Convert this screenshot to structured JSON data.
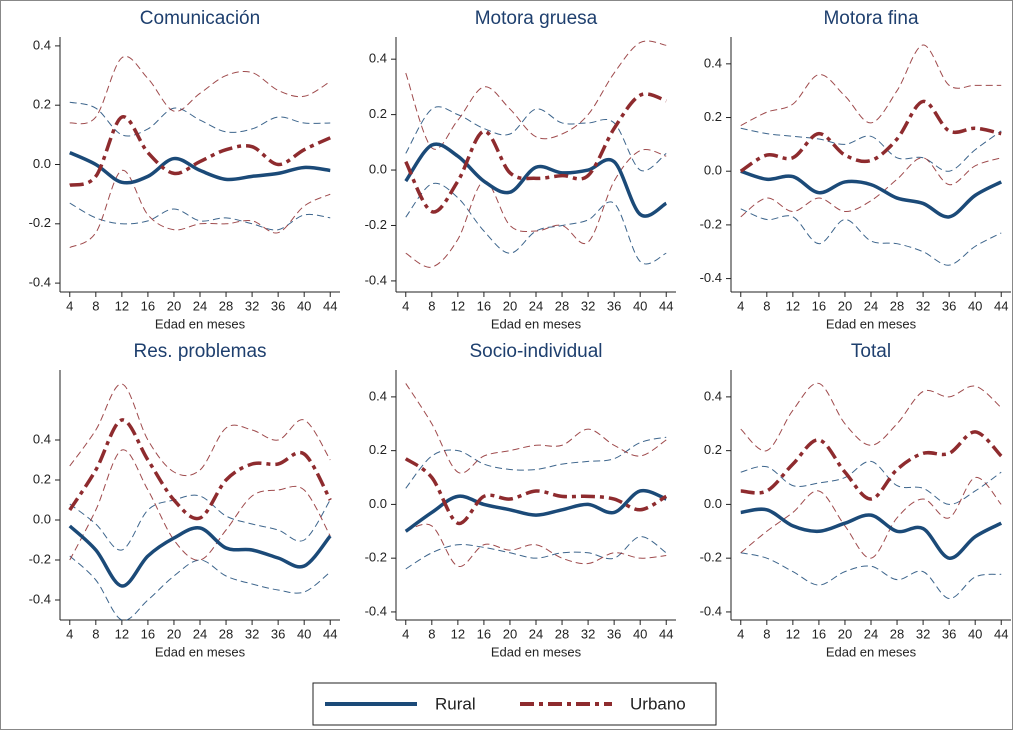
{
  "chart_data": [
    {
      "type": "line",
      "title": "Comunicación",
      "x_label": "Edad en meses",
      "x": [
        4,
        8,
        12,
        16,
        20,
        24,
        28,
        32,
        36,
        40,
        44
      ],
      "xlim": [
        2.5,
        45.5
      ],
      "xticks": [
        4,
        8,
        12,
        16,
        20,
        24,
        28,
        32,
        36,
        40,
        44
      ],
      "ylim": [
        -0.43,
        0.43
      ],
      "yticks": [
        -0.4,
        -0.2,
        {
          "value": 0,
          "label": "0.0"
        },
        0.2,
        0.4
      ],
      "series": [
        {
          "name": "Rural",
          "color": "#1b4a78",
          "line_style": "solid",
          "values": [
            0.04,
            0.0,
            -0.06,
            -0.04,
            0.02,
            -0.02,
            -0.05,
            -0.04,
            -0.03,
            -0.01,
            -0.02
          ],
          "upper": [
            0.21,
            0.19,
            0.1,
            0.12,
            0.19,
            0.15,
            0.11,
            0.12,
            0.16,
            0.14,
            0.14
          ],
          "lower": [
            -0.13,
            -0.18,
            -0.2,
            -0.19,
            -0.15,
            -0.19,
            -0.18,
            -0.2,
            -0.22,
            -0.17,
            -0.18
          ]
        },
        {
          "name": "Urbano",
          "color": "#8e2b2e",
          "line_style": "dash-dot",
          "values": [
            -0.07,
            -0.04,
            0.16,
            0.04,
            -0.03,
            0.01,
            0.05,
            0.06,
            0.0,
            0.05,
            0.09
          ],
          "upper": [
            0.14,
            0.16,
            0.36,
            0.29,
            0.18,
            0.24,
            0.3,
            0.31,
            0.25,
            0.23,
            0.28
          ],
          "lower": [
            -0.28,
            -0.23,
            -0.02,
            -0.17,
            -0.22,
            -0.2,
            -0.2,
            -0.19,
            -0.23,
            -0.14,
            -0.1
          ]
        }
      ]
    },
    {
      "type": "line",
      "title": "Motora gruesa",
      "x_label": "Edad en meses",
      "x": [
        4,
        8,
        12,
        16,
        20,
        24,
        28,
        32,
        36,
        40,
        44
      ],
      "xlim": [
        2.5,
        45.5
      ],
      "xticks": [
        4,
        8,
        12,
        16,
        20,
        24,
        28,
        32,
        36,
        40,
        44
      ],
      "ylim": [
        -0.44,
        0.48
      ],
      "yticks": [
        -0.4,
        -0.2,
        {
          "value": 0,
          "label": "0.0"
        },
        0.2,
        0.4
      ],
      "series": [
        {
          "name": "Rural",
          "color": "#1b4a78",
          "line_style": "solid",
          "values": [
            -0.04,
            0.09,
            0.05,
            -0.04,
            -0.08,
            0.01,
            -0.01,
            0.0,
            0.03,
            -0.16,
            -0.12
          ],
          "upper": [
            0.06,
            0.22,
            0.2,
            0.15,
            0.13,
            0.22,
            0.17,
            0.17,
            0.17,
            0.0,
            0.06
          ],
          "lower": [
            -0.17,
            -0.05,
            -0.1,
            -0.22,
            -0.3,
            -0.22,
            -0.2,
            -0.18,
            -0.12,
            -0.33,
            -0.3
          ]
        },
        {
          "name": "Urbano",
          "color": "#8e2b2e",
          "line_style": "dash-dot",
          "values": [
            0.03,
            -0.15,
            -0.04,
            0.14,
            -0.01,
            -0.03,
            -0.02,
            -0.02,
            0.15,
            0.27,
            0.25
          ],
          "upper": [
            0.35,
            0.08,
            0.18,
            0.3,
            0.22,
            0.12,
            0.13,
            0.2,
            0.35,
            0.46,
            0.45
          ],
          "lower": [
            -0.3,
            -0.35,
            -0.25,
            -0.04,
            -0.2,
            -0.22,
            -0.2,
            -0.26,
            -0.04,
            0.07,
            0.05
          ]
        }
      ]
    },
    {
      "type": "line",
      "title": "Motora fina",
      "x_label": "Edad en meses",
      "x": [
        4,
        8,
        12,
        16,
        20,
        24,
        28,
        32,
        36,
        40,
        44
      ],
      "xlim": [
        2.5,
        45.5
      ],
      "xticks": [
        4,
        8,
        12,
        16,
        20,
        24,
        28,
        32,
        36,
        40,
        44
      ],
      "ylim": [
        -0.45,
        0.5
      ],
      "yticks": [
        -0.4,
        -0.2,
        {
          "value": 0,
          "label": "0.0"
        },
        0.2,
        0.4
      ],
      "series": [
        {
          "name": "Rural",
          "color": "#1b4a78",
          "line_style": "solid",
          "values": [
            0.0,
            -0.03,
            -0.02,
            -0.08,
            -0.04,
            -0.05,
            -0.1,
            -0.12,
            -0.17,
            -0.09,
            -0.04
          ],
          "upper": [
            0.16,
            0.14,
            0.13,
            0.12,
            0.1,
            0.13,
            0.05,
            0.05,
            0.0,
            0.08,
            0.15
          ],
          "lower": [
            -0.14,
            -0.18,
            -0.17,
            -0.27,
            -0.18,
            -0.26,
            -0.27,
            -0.3,
            -0.35,
            -0.28,
            -0.23
          ]
        },
        {
          "name": "Urbano",
          "color": "#8e2b2e",
          "line_style": "dash-dot",
          "values": [
            0.0,
            0.06,
            0.05,
            0.14,
            0.06,
            0.04,
            0.12,
            0.26,
            0.15,
            0.16,
            0.14
          ],
          "upper": [
            0.17,
            0.22,
            0.25,
            0.36,
            0.28,
            0.18,
            0.3,
            0.47,
            0.32,
            0.32,
            0.32
          ],
          "lower": [
            -0.17,
            -0.1,
            -0.15,
            -0.1,
            -0.15,
            -0.11,
            -0.03,
            0.05,
            -0.05,
            0.02,
            0.05
          ]
        }
      ]
    },
    {
      "type": "line",
      "title": "Res. problemas",
      "x_label": "Edad en meses",
      "x": [
        4,
        8,
        12,
        16,
        20,
        24,
        28,
        32,
        36,
        40,
        44
      ],
      "xlim": [
        2.5,
        45.5
      ],
      "xticks": [
        4,
        8,
        12,
        16,
        20,
        24,
        28,
        32,
        36,
        40,
        44
      ],
      "ylim": [
        -0.5,
        0.75
      ],
      "yticks": [
        -0.4,
        -0.2,
        {
          "value": 0,
          "label": "0.0"
        },
        0.2,
        0.4
      ],
      "series": [
        {
          "name": "Rural",
          "color": "#1b4a78",
          "line_style": "solid",
          "values": [
            -0.03,
            -0.15,
            -0.33,
            -0.18,
            -0.09,
            -0.04,
            -0.14,
            -0.15,
            -0.19,
            -0.23,
            -0.08
          ],
          "upper": [
            0.08,
            -0.02,
            -0.15,
            0.05,
            0.1,
            0.12,
            0.02,
            -0.02,
            -0.05,
            -0.1,
            0.1
          ],
          "lower": [
            -0.18,
            -0.3,
            -0.5,
            -0.4,
            -0.28,
            -0.2,
            -0.28,
            -0.32,
            -0.35,
            -0.36,
            -0.26
          ]
        },
        {
          "name": "Urbano",
          "color": "#8e2b2e",
          "line_style": "dash-dot",
          "values": [
            0.05,
            0.25,
            0.5,
            0.3,
            0.1,
            0.01,
            0.2,
            0.28,
            0.28,
            0.33,
            0.1
          ],
          "upper": [
            0.27,
            0.45,
            0.68,
            0.4,
            0.24,
            0.25,
            0.46,
            0.45,
            0.4,
            0.5,
            0.3
          ],
          "lower": [
            -0.2,
            0.05,
            0.35,
            0.15,
            -0.1,
            -0.2,
            -0.05,
            0.12,
            0.15,
            0.15,
            -0.08
          ]
        }
      ]
    },
    {
      "type": "line",
      "title": "Socio-individual",
      "x_label": "Edad en meses",
      "x": [
        4,
        8,
        12,
        16,
        20,
        24,
        28,
        32,
        36,
        40,
        44
      ],
      "xlim": [
        2.5,
        45.5
      ],
      "xticks": [
        4,
        8,
        12,
        16,
        20,
        24,
        28,
        32,
        36,
        40,
        44
      ],
      "ylim": [
        -0.43,
        0.5
      ],
      "yticks": [
        -0.4,
        -0.2,
        {
          "value": 0,
          "label": "0.0"
        },
        0.2,
        0.4
      ],
      "series": [
        {
          "name": "Rural",
          "color": "#1b4a78",
          "line_style": "solid",
          "values": [
            -0.1,
            -0.03,
            0.03,
            0.0,
            -0.02,
            -0.04,
            -0.02,
            0.0,
            -0.03,
            0.05,
            0.02
          ],
          "upper": [
            0.06,
            0.18,
            0.2,
            0.15,
            0.13,
            0.13,
            0.15,
            0.16,
            0.17,
            0.23,
            0.25
          ],
          "lower": [
            -0.24,
            -0.18,
            -0.15,
            -0.16,
            -0.18,
            -0.2,
            -0.18,
            -0.18,
            -0.2,
            -0.12,
            -0.18
          ]
        },
        {
          "name": "Urbano",
          "color": "#8e2b2e",
          "line_style": "dash-dot",
          "values": [
            0.17,
            0.1,
            -0.07,
            0.03,
            0.02,
            0.05,
            0.03,
            0.03,
            0.02,
            -0.02,
            0.03
          ],
          "upper": [
            0.45,
            0.3,
            0.12,
            0.18,
            0.2,
            0.22,
            0.22,
            0.28,
            0.22,
            0.18,
            0.24
          ],
          "lower": [
            -0.1,
            -0.08,
            -0.23,
            -0.15,
            -0.17,
            -0.15,
            -0.2,
            -0.22,
            -0.18,
            -0.2,
            -0.19
          ]
        }
      ]
    },
    {
      "type": "line",
      "title": "Total",
      "x_label": "Edad en meses",
      "x": [
        4,
        8,
        12,
        16,
        20,
        24,
        28,
        32,
        36,
        40,
        44
      ],
      "xlim": [
        2.5,
        45.5
      ],
      "xticks": [
        4,
        8,
        12,
        16,
        20,
        24,
        28,
        32,
        36,
        40,
        44
      ],
      "ylim": [
        -0.43,
        0.5
      ],
      "yticks": [
        -0.4,
        -0.2,
        {
          "value": 0,
          "label": "0.0"
        },
        0.2,
        0.4
      ],
      "series": [
        {
          "name": "Rural",
          "color": "#1b4a78",
          "line_style": "solid",
          "values": [
            -0.03,
            -0.02,
            -0.08,
            -0.1,
            -0.07,
            -0.04,
            -0.1,
            -0.09,
            -0.2,
            -0.12,
            -0.07
          ],
          "upper": [
            0.12,
            0.14,
            0.07,
            0.08,
            0.1,
            0.16,
            0.07,
            0.06,
            0.0,
            0.05,
            0.12
          ],
          "lower": [
            -0.18,
            -0.2,
            -0.25,
            -0.3,
            -0.25,
            -0.23,
            -0.28,
            -0.25,
            -0.35,
            -0.27,
            -0.26
          ]
        },
        {
          "name": "Urbano",
          "color": "#8e2b2e",
          "line_style": "dash-dot",
          "values": [
            0.05,
            0.05,
            0.15,
            0.24,
            0.12,
            0.02,
            0.13,
            0.19,
            0.19,
            0.27,
            0.18
          ],
          "upper": [
            0.28,
            0.2,
            0.35,
            0.45,
            0.3,
            0.22,
            0.3,
            0.42,
            0.4,
            0.44,
            0.36
          ],
          "lower": [
            -0.18,
            -0.1,
            -0.03,
            0.05,
            -0.08,
            -0.2,
            -0.05,
            0.02,
            -0.05,
            0.1,
            0.0
          ]
        }
      ]
    }
  ]
}
